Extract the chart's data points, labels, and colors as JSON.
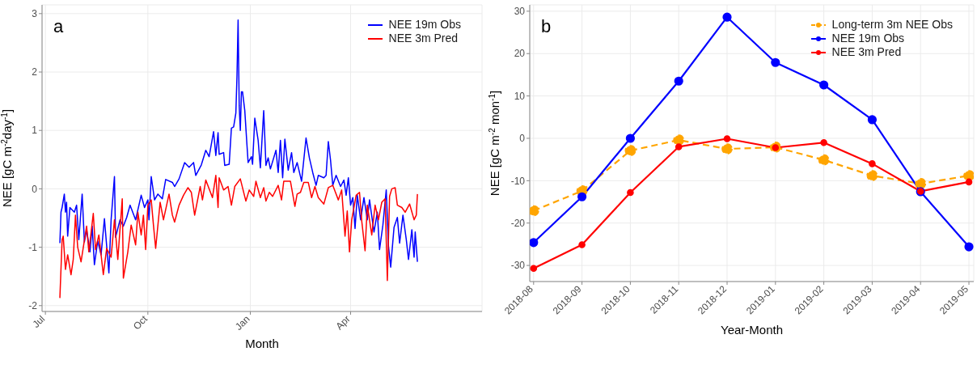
{
  "chart_data": [
    {
      "type": "line",
      "xlabel": "Month",
      "ylabel": "NEE [gC m$^{-2}$day$^{-1}$]",
      "annotations": [
        "a"
      ],
      "xlim": [
        "2018-06-28",
        "2019-07-28"
      ],
      "xticks": [
        {
          "value": "2018-07-01",
          "label": "Jul"
        },
        {
          "value": "2018-10-01",
          "label": "Oct"
        },
        {
          "value": "2019-01-01",
          "label": "Jan"
        },
        {
          "value": "2019-04-01",
          "label": "Apr"
        }
      ],
      "ylim": [
        -2.1,
        3.15
      ],
      "yticks": [
        -2,
        -1,
        0,
        1,
        2,
        3
      ],
      "grid": true,
      "legend": "top right",
      "marker": "none",
      "line_style": "solid",
      "series": [
        {
          "name": "NEE 19m Obs",
          "color": "#0000ff",
          "x": [
            "2018-07-14",
            "2018-07-15",
            "2018-07-16",
            "2018-07-18",
            "2018-07-19",
            "2018-07-20",
            "2018-07-21",
            "2018-07-23",
            "2018-07-27",
            "2018-07-29",
            "2018-07-31",
            "2018-08-03",
            "2018-08-05",
            "2018-08-07",
            "2018-08-10",
            "2018-08-12",
            "2018-08-14",
            "2018-08-17",
            "2018-08-20",
            "2018-08-23",
            "2018-08-27",
            "2018-08-29",
            "2018-09-01",
            "2018-09-02",
            "2018-09-06",
            "2018-09-09",
            "2018-09-12",
            "2018-09-15",
            "2018-09-20",
            "2018-09-25",
            "2018-09-28",
            "2018-10-01",
            "2018-10-02",
            "2018-10-04",
            "2018-10-07",
            "2018-10-10",
            "2018-10-14",
            "2018-10-17",
            "2018-10-23",
            "2018-10-25",
            "2018-10-29",
            "2018-11-03",
            "2018-11-07",
            "2018-11-11",
            "2018-11-13",
            "2018-11-18",
            "2018-11-22",
            "2018-11-25",
            "2018-11-29",
            "2018-12-01",
            "2018-12-03",
            "2018-12-04",
            "2018-12-08",
            "2018-12-09",
            "2018-12-13",
            "2018-12-15",
            "2018-12-17",
            "2018-12-19",
            "2018-12-20",
            "2018-12-21",
            "2018-12-22",
            "2018-12-23",
            "2018-12-24",
            "2018-12-25",
            "2018-12-27",
            "2018-12-29",
            "2018-12-30",
            "2019-01-02",
            "2019-01-03",
            "2019-01-05",
            "2019-01-08",
            "2019-01-10",
            "2019-01-13",
            "2019-01-15",
            "2019-01-17",
            "2019-01-19",
            "2019-01-24",
            "2019-01-26",
            "2019-01-28",
            "2019-01-30",
            "2019-02-01",
            "2019-02-04",
            "2019-02-07",
            "2019-02-09",
            "2019-02-12",
            "2019-02-16",
            "2019-02-20",
            "2019-02-23",
            "2019-02-26",
            "2019-03-01",
            "2019-03-03",
            "2019-03-08",
            "2019-03-10",
            "2019-03-12",
            "2019-03-14",
            "2019-03-16",
            "2019-03-19",
            "2019-03-23",
            "2019-03-26",
            "2019-03-28",
            "2019-03-30",
            "2019-04-01",
            "2019-04-03",
            "2019-04-05",
            "2019-04-07",
            "2019-04-10",
            "2019-04-13",
            "2019-04-16",
            "2019-04-18",
            "2019-04-22",
            "2019-04-25",
            "2019-04-27",
            "2019-04-30",
            "2019-05-03",
            "2019-05-05",
            "2019-05-07",
            "2019-05-10",
            "2019-05-13",
            "2019-05-15",
            "2019-05-18",
            "2019-05-21",
            "2019-05-23",
            "2019-05-26",
            "2019-05-28",
            "2019-05-29",
            "2019-05-31"
          ],
          "values": [
            -0.93,
            -0.4,
            -0.32,
            -0.09,
            -0.4,
            -0.23,
            -0.81,
            -0.32,
            -0.4,
            -0.28,
            -0.87,
            -0.09,
            -0.91,
            -0.7,
            -1.08,
            -0.64,
            -1.3,
            -0.89,
            -1.13,
            -0.51,
            -1.44,
            -0.53,
            0.21,
            -0.83,
            -0.53,
            -0.64,
            -0.49,
            -0.28,
            -0.53,
            -0.11,
            -0.32,
            -0.19,
            -0.53,
            0.21,
            -0.19,
            -0.09,
            -0.17,
            0.16,
            0.11,
            0.04,
            0.17,
            0.45,
            0.37,
            0.45,
            0.23,
            0.41,
            0.66,
            0.55,
            0.98,
            0.57,
            0.96,
            0.59,
            0.62,
            0.4,
            0.42,
            1.04,
            1.06,
            1.3,
            1.93,
            2.89,
            1.42,
            1.0,
            1.66,
            1.66,
            1.34,
            0.74,
            0.45,
            0.55,
            0.42,
            1.21,
            0.83,
            0.36,
            1.34,
            0.4,
            0.53,
            0.34,
            0.66,
            0.28,
            0.83,
            0.19,
            0.85,
            0.32,
            0.62,
            0.28,
            0.45,
            0.13,
            0.87,
            0.53,
            0.28,
            0.06,
            0.23,
            0.19,
            0.23,
            0.81,
            0.49,
            0.06,
            0.23,
            0.04,
            0.15,
            -0.11,
            0.19,
            -0.28,
            -0.15,
            -0.68,
            -0.11,
            -0.53,
            -0.15,
            -0.53,
            -0.19,
            -0.74,
            -0.4,
            -1.04,
            -0.62,
            -0.02,
            -0.98,
            -1.34,
            -0.66,
            -0.49,
            -0.93,
            -0.45,
            -0.87,
            -1.21,
            -0.7,
            -1.17,
            -0.74,
            -1.25
          ]
        },
        {
          "name": "NEE 3m Pred",
          "color": "#ff0000",
          "x": [
            "2018-07-14",
            "2018-07-16",
            "2018-07-17",
            "2018-07-19",
            "2018-07-21",
            "2018-07-24",
            "2018-07-26",
            "2018-07-28",
            "2018-07-30",
            "2018-08-02",
            "2018-08-07",
            "2018-08-09",
            "2018-08-13",
            "2018-08-15",
            "2018-08-18",
            "2018-08-22",
            "2018-08-25",
            "2018-08-29",
            "2018-09-01",
            "2018-09-04",
            "2018-09-08",
            "2018-09-09",
            "2018-09-13",
            "2018-09-16",
            "2018-09-20",
            "2018-09-22",
            "2018-09-25",
            "2018-09-27",
            "2018-09-29",
            "2018-10-01",
            "2018-10-04",
            "2018-10-06",
            "2018-10-08",
            "2018-10-12",
            "2018-10-15",
            "2018-10-20",
            "2018-10-23",
            "2018-10-25",
            "2018-10-29",
            "2018-11-02",
            "2018-11-06",
            "2018-11-09",
            "2018-11-12",
            "2018-11-17",
            "2018-11-19",
            "2018-11-22",
            "2018-11-28",
            "2018-12-01",
            "2018-12-03",
            "2018-12-04",
            "2018-12-08",
            "2018-12-12",
            "2018-12-15",
            "2018-12-18",
            "2018-12-23",
            "2018-12-28",
            "2018-12-31",
            "2019-01-04",
            "2019-01-06",
            "2019-01-10",
            "2019-01-13",
            "2019-01-15",
            "2019-01-18",
            "2019-01-21",
            "2019-01-26",
            "2019-01-29",
            "2019-01-31",
            "2019-02-06",
            "2019-02-10",
            "2019-02-12",
            "2019-02-15",
            "2019-02-18",
            "2019-02-22",
            "2019-02-25",
            "2019-02-28",
            "2019-03-03",
            "2019-03-08",
            "2019-03-12",
            "2019-03-16",
            "2019-03-21",
            "2019-03-24",
            "2019-03-27",
            "2019-03-29",
            "2019-03-31",
            "2019-04-02",
            "2019-04-06",
            "2019-04-09",
            "2019-04-11",
            "2019-04-14",
            "2019-04-16",
            "2019-04-20",
            "2019-04-23",
            "2019-04-26",
            "2019-04-29",
            "2019-05-02",
            "2019-05-04",
            "2019-05-06",
            "2019-05-08",
            "2019-05-11",
            "2019-05-13",
            "2019-05-17",
            "2019-05-20",
            "2019-05-24",
            "2019-05-28",
            "2019-05-30",
            "2019-05-31"
          ],
          "values": [
            -1.87,
            -0.87,
            -0.81,
            -1.38,
            -1.13,
            -1.47,
            -1.21,
            -0.45,
            -1.0,
            -1.25,
            -0.64,
            -1.08,
            -0.42,
            -1.04,
            -0.79,
            -1.47,
            -1.02,
            -1.17,
            -0.53,
            -1.21,
            -0.17,
            -1.53,
            -1.08,
            -0.62,
            -0.96,
            -0.4,
            -0.79,
            -0.45,
            -1.04,
            -0.28,
            -0.19,
            -0.62,
            -1.02,
            -0.23,
            -0.53,
            -0.09,
            -0.45,
            -0.57,
            -0.28,
            -0.11,
            0.02,
            -0.06,
            -0.45,
            0.04,
            -0.19,
            0.15,
            -0.15,
            0.23,
            -0.32,
            0.19,
            -0.02,
            0.04,
            -0.28,
            0.04,
            0.17,
            -0.21,
            -0.02,
            -0.13,
            0.13,
            -0.15,
            0.02,
            -0.21,
            -0.06,
            -0.13,
            0.06,
            -0.19,
            0.13,
            0.13,
            -0.3,
            -0.09,
            -0.06,
            0.11,
            0.11,
            -0.15,
            0.04,
            -0.15,
            -0.26,
            0.02,
            0.06,
            -0.19,
            -0.02,
            -0.81,
            -0.38,
            -1.08,
            -0.53,
            -0.11,
            -0.06,
            -0.55,
            -1.06,
            -0.28,
            -0.79,
            -0.28,
            -0.53,
            -0.23,
            -0.17,
            -1.57,
            -0.13,
            0.0,
            0.02,
            -0.28,
            -0.32,
            -0.4,
            -0.26,
            -0.53,
            -0.45,
            -0.09
          ]
        }
      ]
    },
    {
      "type": "line",
      "xlabel": "Year-Month",
      "ylabel": "NEE [gC m$^{-2}$ mon$^{-1}$]",
      "annotations": [
        "b"
      ],
      "categories": [
        "2018-08",
        "2018-09",
        "2018-10",
        "2018-11",
        "2018-12",
        "2019-01",
        "2019-02",
        "2019-03",
        "2019-04",
        "2019-05"
      ],
      "ylim": [
        -33.8,
        31.5
      ],
      "yticks": [
        -30,
        -20,
        -10,
        0,
        10,
        20,
        30
      ],
      "grid": true,
      "legend": "top right",
      "marker": "circle",
      "line_style": "solid",
      "series": [
        {
          "name": "Long-term 3m NEE Obs",
          "color": "#ffa500",
          "line_style": "dashed",
          "values": [
            -17.1,
            -12.4,
            -2.9,
            -0.4,
            -2.5,
            -2.1,
            -5.1,
            -8.8,
            -10.7,
            -8.8
          ]
        },
        {
          "name": "NEE 19m Obs",
          "color": "#0000ff",
          "values": [
            -24.6,
            -13.8,
            0,
            13.5,
            28.6,
            17.9,
            12.6,
            4.4,
            -12.6,
            -25.6
          ]
        },
        {
          "name": "NEE 3m Pred",
          "color": "#ff0000",
          "values": [
            -30.7,
            -25.1,
            -12.8,
            -2.0,
            -0.1,
            -2.2,
            -1.0,
            -6.0,
            -12.5,
            -10.3
          ]
        }
      ]
    }
  ]
}
